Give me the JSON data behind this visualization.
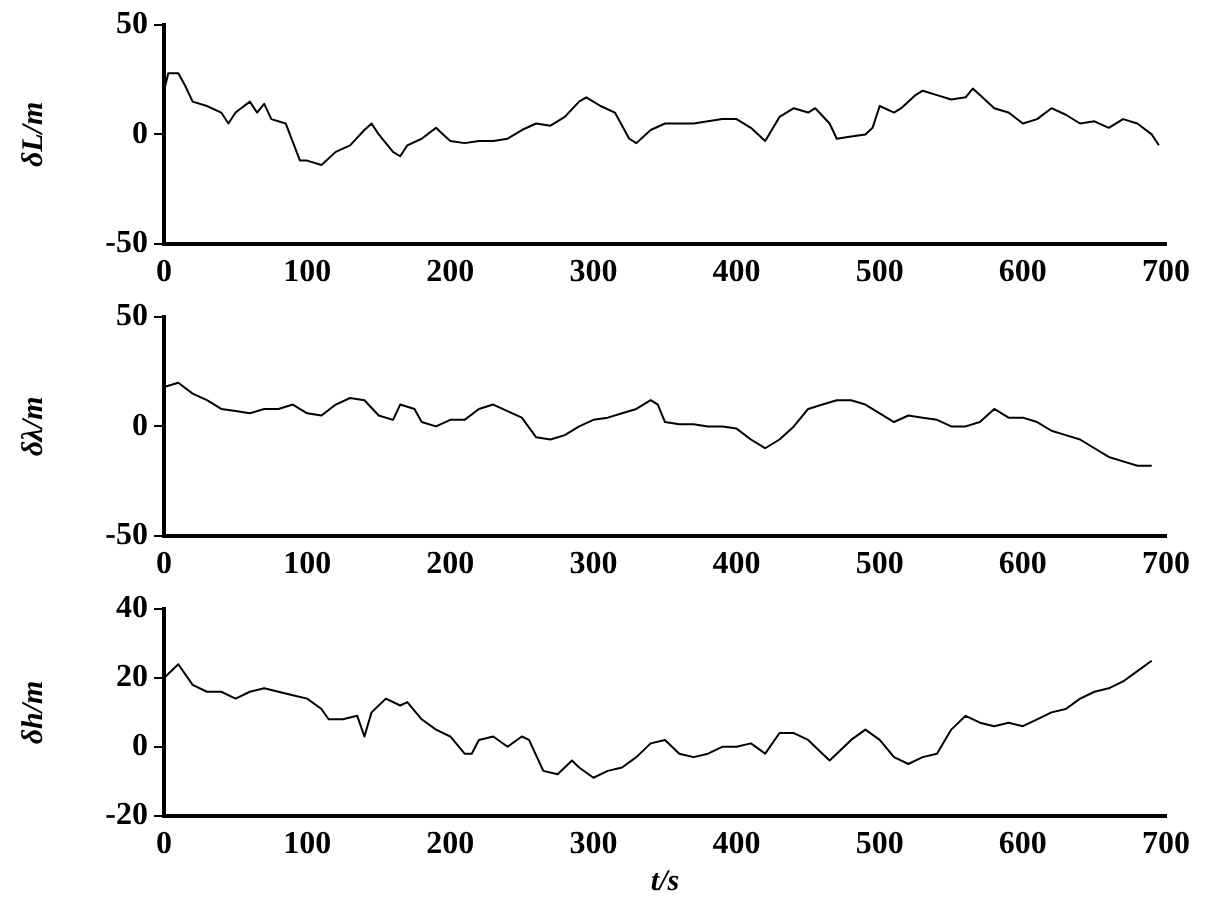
{
  "chart_data": [
    {
      "type": "line",
      "ylabel": "δL/m",
      "color": "#000000",
      "xlim": [
        0,
        700
      ],
      "xticks": [
        0,
        100,
        200,
        300,
        400,
        500,
        600,
        700
      ],
      "ylim": [
        -50,
        50
      ],
      "yticks": [
        -50,
        0,
        50
      ],
      "x": [
        0,
        3,
        10,
        15,
        20,
        30,
        40,
        45,
        50,
        60,
        65,
        70,
        75,
        85,
        95,
        100,
        110,
        120,
        130,
        140,
        145,
        150,
        160,
        165,
        170,
        180,
        190,
        195,
        200,
        210,
        220,
        230,
        240,
        250,
        260,
        270,
        280,
        290,
        295,
        305,
        315,
        325,
        330,
        340,
        350,
        360,
        370,
        380,
        390,
        400,
        410,
        420,
        430,
        440,
        450,
        455,
        465,
        470,
        480,
        490,
        495,
        500,
        510,
        515,
        525,
        530,
        540,
        550,
        560,
        565,
        570,
        580,
        590,
        600,
        610,
        620,
        630,
        640,
        650,
        660,
        670,
        680,
        690,
        695
      ],
      "values": [
        20,
        28,
        28,
        22,
        15,
        13,
        10,
        5,
        10,
        15,
        10,
        14,
        7,
        5,
        -12,
        -12,
        -14,
        -8,
        -5,
        2,
        5,
        0,
        -8,
        -10,
        -5,
        -2,
        3,
        0,
        -3,
        -4,
        -3,
        -3,
        -2,
        2,
        5,
        4,
        8,
        15,
        17,
        13,
        10,
        -2,
        -4,
        2,
        5,
        5,
        5,
        6,
        7,
        7,
        3,
        -3,
        8,
        12,
        10,
        12,
        5,
        -2,
        -1,
        0,
        3,
        13,
        10,
        12,
        18,
        20,
        18,
        16,
        17,
        21,
        18,
        12,
        10,
        5,
        7,
        12,
        9,
        5,
        6,
        3,
        7,
        5,
        0,
        -5
      ]
    },
    {
      "type": "line",
      "ylabel": "δλ/m",
      "color": "#000000",
      "xlim": [
        0,
        700
      ],
      "xticks": [
        0,
        100,
        200,
        300,
        400,
        500,
        600,
        700
      ],
      "ylim": [
        -50,
        50
      ],
      "yticks": [
        -50,
        0,
        50
      ],
      "x": [
        0,
        10,
        20,
        30,
        40,
        50,
        60,
        70,
        80,
        90,
        100,
        110,
        120,
        130,
        140,
        150,
        160,
        165,
        175,
        180,
        190,
        200,
        210,
        220,
        230,
        240,
        250,
        260,
        270,
        280,
        290,
        300,
        310,
        320,
        330,
        340,
        345,
        350,
        360,
        370,
        380,
        390,
        400,
        410,
        420,
        430,
        440,
        450,
        460,
        470,
        480,
        490,
        500,
        510,
        520,
        530,
        540,
        550,
        560,
        570,
        580,
        590,
        600,
        610,
        620,
        630,
        640,
        650,
        660,
        670,
        680,
        690
      ],
      "values": [
        18,
        20,
        15,
        12,
        8,
        7,
        6,
        8,
        8,
        10,
        6,
        5,
        10,
        13,
        12,
        5,
        3,
        10,
        8,
        2,
        0,
        3,
        3,
        8,
        10,
        7,
        4,
        -5,
        -6,
        -4,
        0,
        3,
        4,
        6,
        8,
        12,
        10,
        2,
        1,
        1,
        0,
        0,
        -1,
        -6,
        -10,
        -6,
        0,
        8,
        10,
        12,
        12,
        10,
        6,
        2,
        5,
        4,
        3,
        0,
        0,
        2,
        8,
        4,
        4,
        2,
        -2,
        -4,
        -6,
        -10,
        -14,
        -16,
        -18,
        -18
      ]
    },
    {
      "type": "line",
      "ylabel": "δh/m",
      "xlabel": "t/s",
      "color": "#000000",
      "xlim": [
        0,
        700
      ],
      "xticks": [
        0,
        100,
        200,
        300,
        400,
        500,
        600,
        700
      ],
      "ylim": [
        -20,
        40
      ],
      "yticks": [
        -20,
        0,
        20,
        40
      ],
      "x": [
        0,
        10,
        20,
        30,
        40,
        50,
        60,
        70,
        80,
        90,
        100,
        110,
        115,
        125,
        135,
        140,
        145,
        155,
        165,
        170,
        180,
        190,
        200,
        210,
        215,
        220,
        230,
        240,
        250,
        255,
        265,
        275,
        285,
        290,
        300,
        310,
        320,
        330,
        340,
        350,
        360,
        370,
        380,
        390,
        400,
        410,
        420,
        430,
        440,
        450,
        460,
        465,
        470,
        480,
        490,
        500,
        510,
        520,
        530,
        540,
        550,
        560,
        570,
        580,
        590,
        600,
        610,
        620,
        630,
        640,
        650,
        660,
        670,
        680,
        690
      ],
      "values": [
        20,
        24,
        18,
        16,
        16,
        14,
        16,
        17,
        16,
        15,
        14,
        11,
        8,
        8,
        9,
        3,
        10,
        14,
        12,
        13,
        8,
        5,
        3,
        -2,
        -2,
        2,
        3,
        0,
        3,
        2,
        -7,
        -8,
        -4,
        -6,
        -9,
        -7,
        -6,
        -3,
        1,
        2,
        -2,
        -3,
        -2,
        0,
        0,
        1,
        -2,
        4,
        4,
        2,
        -2,
        -4,
        -2,
        2,
        5,
        2,
        -3,
        -5,
        -3,
        -2,
        5,
        9,
        7,
        6,
        7,
        6,
        8,
        10,
        11,
        14,
        16,
        17,
        19,
        22,
        25
      ]
    }
  ]
}
